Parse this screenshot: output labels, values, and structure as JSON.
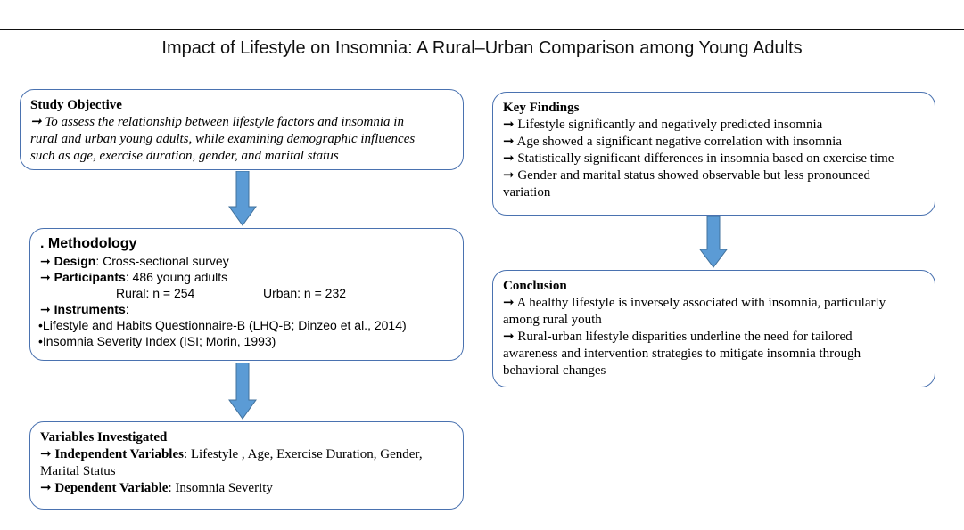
{
  "title": "Impact of Lifestyle on Insomnia: A Rural–Urban Comparison among Young Adults",
  "arrow_glyph": "➞",
  "objective": {
    "heading": "Study Objective",
    "lines": [
      "To assess the relationship between lifestyle factors and insomnia in",
      "rural and urban young adults, while examining demographic influences",
      "such as age, exercise duration, gender, and marital status"
    ]
  },
  "methodology": {
    "heading": ". Methodology",
    "design_label": "Design",
    "design_value": ": Cross-sectional survey",
    "participants_label": "Participants",
    "participants_value": ": 486 young adults",
    "rural": "Rural: n = 254",
    "urban": "Urban: n = 232",
    "instruments_label": "Instruments",
    "instruments_colon": ":",
    "instrument_1": "•Lifestyle and Habits Questionnaire-B (LHQ-B; Dinzeo et al., 2014)",
    "instrument_2": "•Insomnia Severity Index (ISI; Morin, 1993)"
  },
  "variables": {
    "heading": "Variables Investigated",
    "independent_label": "Independent Variables",
    "independent_value": ": Lifestyle , Age, Exercise Duration, Gender,",
    "independent_cont": "Marital Status",
    "dependent_label": "Dependent Variable",
    "dependent_value": ": Insomnia Severity"
  },
  "findings": {
    "heading": "Key Findings",
    "items": [
      "Lifestyle significantly and negatively predicted insomnia",
      "Age showed a significant negative correlation with insomnia",
      "Statistically significant differences in insomnia based on exercise time",
      "Gender and marital status showed observable but less pronounced"
    ],
    "item_4_cont": "variation"
  },
  "conclusion": {
    "heading": "Conclusion",
    "item_1": "A healthy lifestyle is inversely associated with insomnia, particularly",
    "item_1_cont": "among rural youth",
    "item_2": "Rural-urban lifestyle disparities underline the need for tailored",
    "item_2_cont_1": "awareness and intervention strategies to mitigate insomnia through",
    "item_2_cont_2": "behavioral changes"
  },
  "colors": {
    "box_border": "#4a72b0",
    "arrow_fill": "#5b9bd5",
    "arrow_stroke": "#41719c"
  }
}
